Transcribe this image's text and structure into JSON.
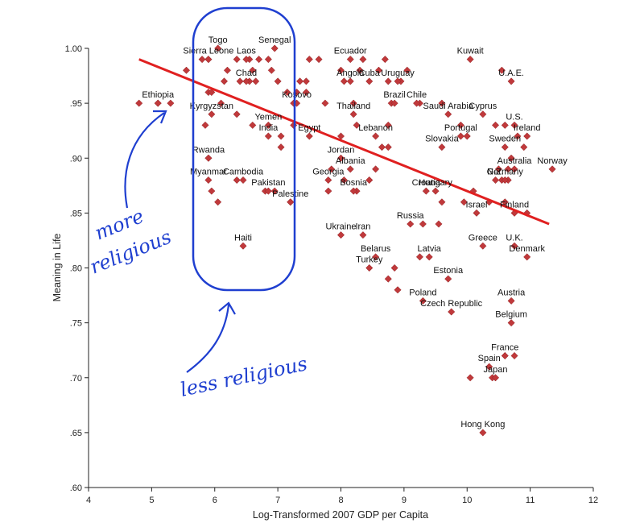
{
  "chart_data": {
    "type": "scatter",
    "xlabel": "Log-Transformed 2007 GDP per Capita",
    "ylabel": "Meaning in Life",
    "xlim": [
      4,
      12
    ],
    "ylim": [
      0.6,
      1.0
    ],
    "x_ticks": [
      "4",
      "5",
      "6",
      "7",
      "8",
      "9",
      "10",
      "11",
      "12"
    ],
    "y_ticks": [
      ".60",
      ".65",
      ".70",
      ".75",
      ".80",
      ".85",
      ".90",
      ".95",
      "1.00"
    ],
    "grid": false,
    "marker_color": "#c0393b",
    "trend_line": {
      "color": "#e02020",
      "x": [
        4.8,
        11.3
      ],
      "y": [
        0.99,
        0.84
      ]
    },
    "labeled_points": [
      {
        "label": "Sierra Leone",
        "x": 5.9,
        "y": 0.99
      },
      {
        "label": "Togo",
        "x": 6.05,
        "y": 1.0
      },
      {
        "label": "Senegal",
        "x": 6.95,
        "y": 1.0
      },
      {
        "label": "Laos",
        "x": 6.5,
        "y": 0.99
      },
      {
        "label": "Chad",
        "x": 6.5,
        "y": 0.97
      },
      {
        "label": "Ecuador",
        "x": 8.15,
        "y": 0.99
      },
      {
        "label": "Kuwait",
        "x": 10.05,
        "y": 0.99
      },
      {
        "label": "Angola",
        "x": 8.15,
        "y": 0.97
      },
      {
        "label": "Cuba",
        "x": 8.45,
        "y": 0.97
      },
      {
        "label": "U.A.E.",
        "x": 10.7,
        "y": 0.97
      },
      {
        "label": "Uruguay",
        "x": 8.9,
        "y": 0.97
      },
      {
        "label": "Kosovo",
        "x": 7.3,
        "y": 0.95
      },
      {
        "label": "Ethiopia",
        "x": 5.1,
        "y": 0.95
      },
      {
        "label": "Brazil",
        "x": 8.85,
        "y": 0.95
      },
      {
        "label": "Chile",
        "x": 9.2,
        "y": 0.95
      },
      {
        "label": "Kyrgyzstan",
        "x": 5.95,
        "y": 0.94
      },
      {
        "label": "Thailand",
        "x": 8.2,
        "y": 0.94
      },
      {
        "label": "Saudi Arabia",
        "x": 9.7,
        "y": 0.94
      },
      {
        "label": "Cyprus",
        "x": 10.25,
        "y": 0.94
      },
      {
        "label": "U.S.",
        "x": 10.75,
        "y": 0.93
      },
      {
        "label": "Yemen",
        "x": 6.85,
        "y": 0.93
      },
      {
        "label": "Egypt",
        "x": 7.5,
        "y": 0.92
      },
      {
        "label": "India",
        "x": 6.85,
        "y": 0.92
      },
      {
        "label": "Ireland",
        "x": 10.95,
        "y": 0.92
      },
      {
        "label": "Lebanon",
        "x": 8.55,
        "y": 0.92
      },
      {
        "label": "Portugal",
        "x": 9.9,
        "y": 0.92
      },
      {
        "label": "Slovakia",
        "x": 9.6,
        "y": 0.91
      },
      {
        "label": "Sweden",
        "x": 10.6,
        "y": 0.91
      },
      {
        "label": "Rwanda",
        "x": 5.9,
        "y": 0.9
      },
      {
        "label": "Jordan",
        "x": 8.0,
        "y": 0.9
      },
      {
        "label": "Australia",
        "x": 10.75,
        "y": 0.89
      },
      {
        "label": "Albania",
        "x": 8.15,
        "y": 0.89
      },
      {
        "label": "Norway",
        "x": 11.35,
        "y": 0.89
      },
      {
        "label": "Germany",
        "x": 10.6,
        "y": 0.88
      },
      {
        "label": "Cambodia",
        "x": 6.45,
        "y": 0.88
      },
      {
        "label": "Myanmar",
        "x": 5.9,
        "y": 0.88
      },
      {
        "label": "Georgia",
        "x": 7.8,
        "y": 0.88
      },
      {
        "label": "N.Z.",
        "x": 10.45,
        "y": 0.88
      },
      {
        "label": "Croatia",
        "x": 9.35,
        "y": 0.87
      },
      {
        "label": "Pakistan",
        "x": 6.85,
        "y": 0.87
      },
      {
        "label": "Bosnia",
        "x": 8.2,
        "y": 0.87
      },
      {
        "label": "Hungary",
        "x": 9.5,
        "y": 0.87
      },
      {
        "label": "Palestine",
        "x": 7.2,
        "y": 0.86
      },
      {
        "label": "Finland",
        "x": 10.75,
        "y": 0.85
      },
      {
        "label": "Israel",
        "x": 10.15,
        "y": 0.85
      },
      {
        "label": "Ukraine",
        "x": 8.0,
        "y": 0.83
      },
      {
        "label": "Iran",
        "x": 8.35,
        "y": 0.83
      },
      {
        "label": "Russia",
        "x": 9.1,
        "y": 0.84
      },
      {
        "label": "Haiti",
        "x": 6.45,
        "y": 0.82
      },
      {
        "label": "Greece",
        "x": 10.25,
        "y": 0.82
      },
      {
        "label": "U.K.",
        "x": 10.75,
        "y": 0.82
      },
      {
        "label": "Latvia",
        "x": 9.4,
        "y": 0.81
      },
      {
        "label": "Belarus",
        "x": 8.55,
        "y": 0.81
      },
      {
        "label": "Denmark",
        "x": 10.95,
        "y": 0.81
      },
      {
        "label": "Turkey",
        "x": 8.45,
        "y": 0.8
      },
      {
        "label": "Estonia",
        "x": 9.7,
        "y": 0.79
      },
      {
        "label": "Austria",
        "x": 10.7,
        "y": 0.77
      },
      {
        "label": "Poland",
        "x": 9.3,
        "y": 0.77
      },
      {
        "label": "Czech Republic",
        "x": 9.75,
        "y": 0.76
      },
      {
        "label": "Belgium",
        "x": 10.7,
        "y": 0.75
      },
      {
        "label": "France",
        "x": 10.6,
        "y": 0.72
      },
      {
        "label": "Spain",
        "x": 10.35,
        "y": 0.71
      },
      {
        "label": "Japan",
        "x": 10.45,
        "y": 0.7
      },
      {
        "label": "Hong Kong",
        "x": 10.25,
        "y": 0.65
      }
    ],
    "unlabeled_points": [
      [
        4.8,
        0.95
      ],
      [
        5.1,
        0.95
      ],
      [
        5.3,
        0.95
      ],
      [
        5.55,
        0.98
      ],
      [
        5.8,
        0.99
      ],
      [
        5.9,
        0.99
      ],
      [
        6.2,
        0.98
      ],
      [
        6.35,
        0.99
      ],
      [
        6.55,
        0.99
      ],
      [
        6.7,
        0.99
      ],
      [
        6.85,
        0.99
      ],
      [
        6.9,
        0.98
      ],
      [
        6.6,
        0.98
      ],
      [
        6.4,
        0.97
      ],
      [
        6.15,
        0.97
      ],
      [
        6.55,
        0.97
      ],
      [
        6.65,
        0.97
      ],
      [
        7.0,
        0.97
      ],
      [
        7.15,
        0.96
      ],
      [
        7.35,
        0.97
      ],
      [
        7.45,
        0.97
      ],
      [
        7.3,
        0.96
      ],
      [
        7.5,
        0.99
      ],
      [
        7.65,
        0.99
      ],
      [
        7.45,
        0.96
      ],
      [
        5.9,
        0.96
      ],
      [
        5.95,
        0.96
      ],
      [
        6.1,
        0.95
      ],
      [
        6.35,
        0.94
      ],
      [
        5.85,
        0.93
      ],
      [
        6.6,
        0.93
      ],
      [
        7.05,
        0.92
      ],
      [
        7.05,
        0.91
      ],
      [
        7.25,
        0.93
      ],
      [
        7.25,
        0.95
      ],
      [
        7.75,
        0.95
      ],
      [
        8.0,
        0.98
      ],
      [
        8.05,
        0.97
      ],
      [
        8.3,
        0.98
      ],
      [
        8.35,
        0.99
      ],
      [
        8.6,
        0.98
      ],
      [
        8.7,
        0.99
      ],
      [
        8.75,
        0.97
      ],
      [
        8.95,
        0.97
      ],
      [
        9.05,
        0.98
      ],
      [
        8.2,
        0.95
      ],
      [
        8.8,
        0.95
      ],
      [
        8.75,
        0.93
      ],
      [
        9.25,
        0.95
      ],
      [
        8.25,
        0.93
      ],
      [
        8.0,
        0.92
      ],
      [
        8.65,
        0.91
      ],
      [
        8.75,
        0.91
      ],
      [
        8.55,
        0.89
      ],
      [
        8.05,
        0.88
      ],
      [
        7.85,
        0.89
      ],
      [
        7.8,
        0.87
      ],
      [
        9.6,
        0.86
      ],
      [
        9.3,
        0.84
      ],
      [
        9.55,
        0.84
      ],
      [
        8.25,
        0.87
      ],
      [
        8.45,
        0.88
      ],
      [
        5.9,
        0.9
      ],
      [
        5.95,
        0.87
      ],
      [
        6.05,
        0.86
      ],
      [
        6.35,
        0.88
      ],
      [
        6.8,
        0.87
      ],
      [
        6.95,
        0.87
      ],
      [
        7.2,
        0.86
      ],
      [
        9.6,
        0.95
      ],
      [
        9.9,
        0.93
      ],
      [
        10.0,
        0.92
      ],
      [
        10.5,
        0.89
      ],
      [
        10.7,
        0.9
      ],
      [
        10.65,
        0.89
      ],
      [
        10.55,
        0.88
      ],
      [
        10.65,
        0.88
      ],
      [
        10.8,
        0.92
      ],
      [
        10.9,
        0.91
      ],
      [
        10.6,
        0.86
      ],
      [
        10.95,
        0.85
      ],
      [
        10.1,
        0.87
      ],
      [
        10.35,
        0.86
      ],
      [
        9.95,
        0.86
      ],
      [
        10.55,
        0.98
      ],
      [
        10.6,
        0.93
      ],
      [
        10.45,
        0.93
      ],
      [
        8.75,
        0.79
      ],
      [
        8.9,
        0.78
      ],
      [
        9.25,
        0.81
      ],
      [
        8.85,
        0.8
      ],
      [
        10.05,
        0.7
      ],
      [
        10.4,
        0.7
      ],
      [
        10.6,
        0.72
      ],
      [
        10.75,
        0.72
      ]
    ]
  },
  "annotations": {
    "left_note_line1": "more",
    "left_note_line2": "religious",
    "bottom_note": "less religious"
  }
}
